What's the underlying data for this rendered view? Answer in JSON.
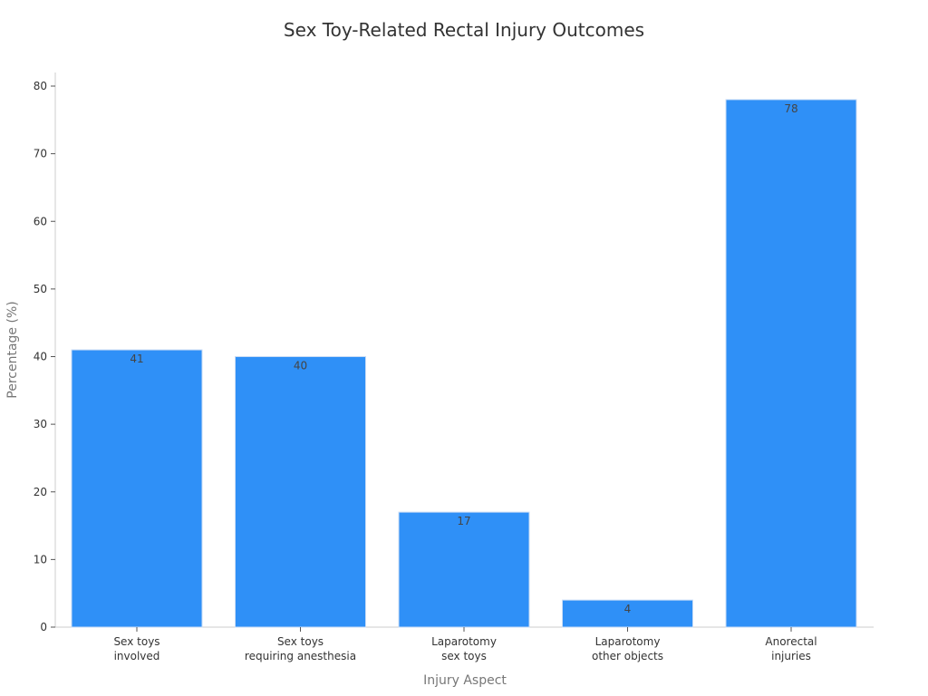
{
  "chart_data": {
    "type": "bar",
    "title": "Sex Toy-Related Rectal Injury Outcomes",
    "xlabel": "Injury Aspect",
    "ylabel": "Percentage (%)",
    "categories": [
      [
        "Sex toys",
        "involved"
      ],
      [
        "Sex toys",
        "requiring anesthesia"
      ],
      [
        "Laparotomy",
        "sex toys"
      ],
      [
        "Laparotomy",
        "other objects"
      ],
      [
        "Anorectal",
        "injuries"
      ]
    ],
    "values": [
      41,
      40,
      17,
      4,
      78
    ],
    "ylim": [
      0,
      80
    ],
    "yticks": [
      0,
      10,
      20,
      30,
      40,
      50,
      60,
      70,
      80
    ],
    "grid": false,
    "bar_color": "#2f90f7",
    "bar_edge_color": "#c9dcf5"
  }
}
